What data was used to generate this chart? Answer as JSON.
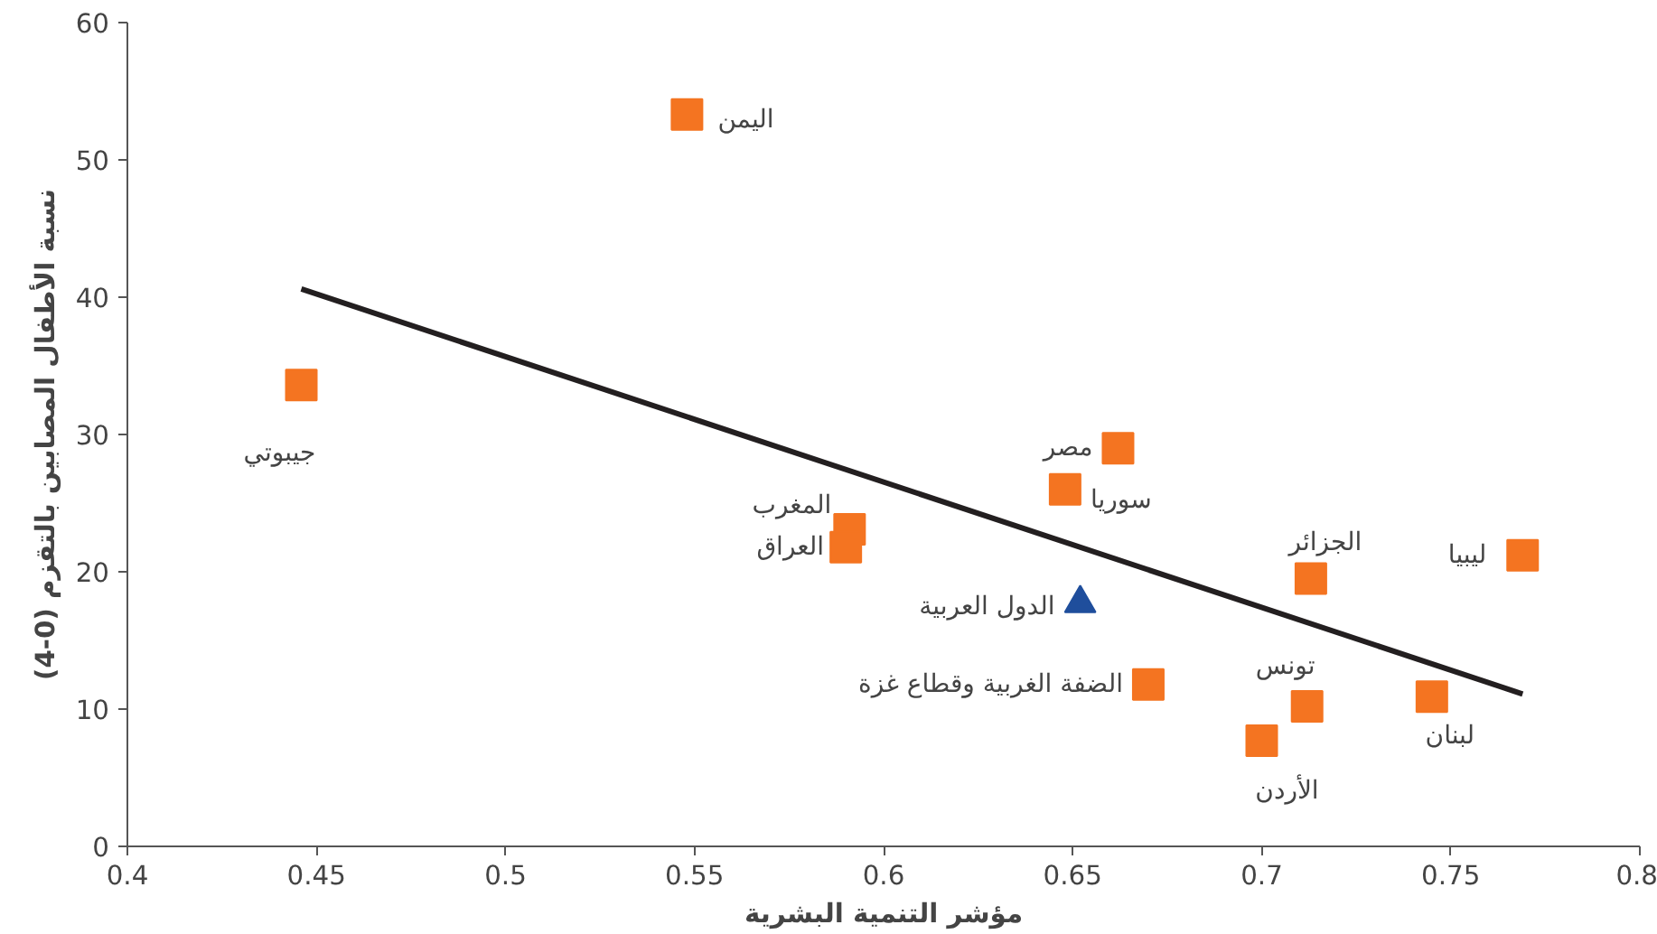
{
  "chart_data": {
    "type": "scatter",
    "xlabel": "مؤشر التنمية البشرية",
    "ylabel": "نسبة الأطفال المصابين بالتقزم (0-4)",
    "xlim": [
      0.4,
      0.8
    ],
    "xticks": [
      0.4,
      0.45,
      0.5,
      0.55,
      0.6,
      0.65,
      0.7,
      0.75,
      0.8
    ],
    "ylim": [
      0,
      60
    ],
    "yticks": [
      0,
      10,
      20,
      30,
      40,
      50,
      60
    ],
    "grid": false,
    "series": [
      {
        "marker": "square",
        "color": "#f47421",
        "x": [
          0.548,
          0.446,
          0.662,
          0.648,
          0.591,
          0.59,
          0.713,
          0.769,
          0.67,
          0.712,
          0.7,
          0.745
        ],
        "values": [
          53.3,
          33.6,
          29.0,
          26.0,
          23.1,
          21.8,
          19.5,
          21.2,
          11.8,
          10.2,
          7.7,
          10.9
        ]
      },
      {
        "marker": "triangle",
        "color": "#1f4e9c",
        "x": [
          0.652
        ],
        "values": [
          17.7
        ]
      },
      {
        "type": "line",
        "color": "#231f20",
        "x": [
          0.446,
          0.769
        ],
        "values": [
          40.6,
          11.1
        ]
      }
    ],
    "annotations": [
      {
        "text": "اليمن",
        "x": 0.548,
        "y": 53.3
      },
      {
        "text": "جيبوتي",
        "x": 0.446,
        "y": 33.6
      },
      {
        "text": "مصر",
        "x": 0.662,
        "y": 29.0
      },
      {
        "text": "سوريا",
        "x": 0.648,
        "y": 26.0
      },
      {
        "text": "المغرب",
        "x": 0.591,
        "y": 23.1
      },
      {
        "text": "العراق",
        "x": 0.59,
        "y": 21.8
      },
      {
        "text": "الجزائر",
        "x": 0.713,
        "y": 19.5
      },
      {
        "text": "ليبيا",
        "x": 0.769,
        "y": 21.2
      },
      {
        "text": "الضفة الغربية وقطاع غزة",
        "x": 0.67,
        "y": 11.8
      },
      {
        "text": "تونس",
        "x": 0.712,
        "y": 10.2
      },
      {
        "text": "الأردن",
        "x": 0.7,
        "y": 7.7
      },
      {
        "text": "لبنان",
        "x": 0.745,
        "y": 10.9
      },
      {
        "text": "الدول العربية",
        "x": 0.652,
        "y": 17.7
      }
    ]
  }
}
